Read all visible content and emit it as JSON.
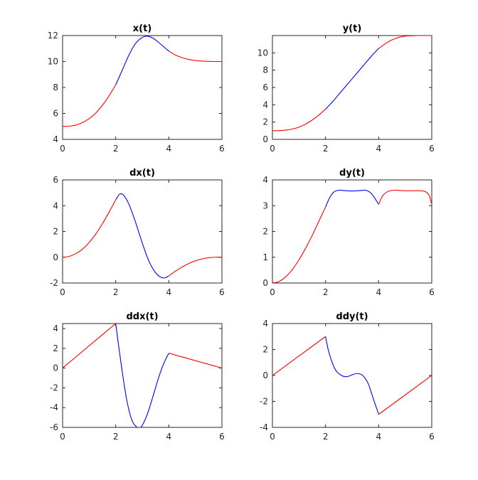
{
  "chart_data": [
    {
      "type": "line",
      "title": "x(t)",
      "xlabel": "",
      "ylabel": "",
      "xlim": [
        0,
        6
      ],
      "ylim": [
        4,
        12
      ],
      "xticks": [
        0,
        2,
        4,
        6
      ],
      "yticks": [
        4,
        6,
        8,
        10,
        12
      ],
      "grid": false,
      "series": [
        {
          "color": "#ff0000",
          "x": [
            0,
            0.25,
            0.5,
            0.75,
            1,
            1.25,
            1.5,
            1.75,
            2
          ],
          "y": [
            5,
            5.02,
            5.1,
            5.3,
            5.6,
            6.03,
            6.63,
            7.36,
            8.2
          ]
        },
        {
          "color": "#0000ff",
          "x": [
            2,
            2.25,
            2.5,
            2.75,
            3,
            3.2,
            3.4,
            3.6,
            3.8,
            4
          ],
          "y": [
            8.2,
            9.35,
            10.5,
            11.4,
            11.85,
            11.95,
            11.8,
            11.5,
            11.15,
            10.8
          ]
        },
        {
          "color": "#ff0000",
          "x": [
            4,
            4.25,
            4.5,
            4.75,
            5,
            5.25,
            5.5,
            5.75,
            6
          ],
          "y": [
            10.8,
            10.5,
            10.3,
            10.16,
            10.08,
            10.03,
            10.01,
            10,
            10
          ]
        }
      ]
    },
    {
      "type": "line",
      "title": "y(t)",
      "xlabel": "",
      "ylabel": "",
      "xlim": [
        0,
        6
      ],
      "ylim": [
        0,
        12
      ],
      "xticks": [
        0,
        2,
        4,
        6
      ],
      "yticks": [
        0,
        2,
        4,
        6,
        8,
        10
      ],
      "grid": false,
      "series": [
        {
          "color": "#ff0000",
          "x": [
            0,
            0.25,
            0.5,
            0.75,
            1,
            1.25,
            1.5,
            1.75,
            2
          ],
          "y": [
            1,
            1.01,
            1.06,
            1.19,
            1.42,
            1.77,
            2.24,
            2.82,
            3.5
          ]
        },
        {
          "color": "#0000ff",
          "x": [
            2,
            2.25,
            2.5,
            2.75,
            3,
            3.25,
            3.5,
            3.75,
            4
          ],
          "y": [
            3.5,
            4.3,
            5.2,
            6.1,
            7,
            7.9,
            8.8,
            9.7,
            10.5
          ]
        },
        {
          "color": "#ff0000",
          "x": [
            4,
            4.25,
            4.5,
            4.75,
            5,
            5.25,
            5.5,
            5.75,
            6
          ],
          "y": [
            10.5,
            11.05,
            11.5,
            11.78,
            11.93,
            11.98,
            12,
            12,
            12
          ]
        }
      ]
    },
    {
      "type": "line",
      "title": "dx(t)",
      "xlabel": "",
      "ylabel": "",
      "xlim": [
        0,
        6
      ],
      "ylim": [
        -2,
        6
      ],
      "xticks": [
        0,
        2,
        4,
        6
      ],
      "yticks": [
        -2,
        0,
        2,
        4,
        6
      ],
      "grid": false,
      "series": [
        {
          "color": "#ff0000",
          "x": [
            0,
            0.25,
            0.5,
            0.75,
            1,
            1.25,
            1.5,
            1.75,
            2
          ],
          "y": [
            0,
            0.07,
            0.28,
            0.63,
            1.15,
            1.8,
            2.6,
            3.5,
            4.45
          ]
        },
        {
          "color": "#0000ff",
          "x": [
            2,
            2.15,
            2.3,
            2.5,
            2.75,
            3,
            3.25,
            3.5,
            3.7,
            3.85,
            4
          ],
          "y": [
            4.45,
            4.9,
            4.8,
            4.1,
            2.7,
            1.1,
            -0.3,
            -1.2,
            -1.55,
            -1.6,
            -1.45
          ]
        },
        {
          "color": "#ff0000",
          "x": [
            4,
            4.25,
            4.5,
            4.75,
            5,
            5.25,
            5.5,
            5.75,
            6
          ],
          "y": [
            -1.45,
            -1.08,
            -0.76,
            -0.49,
            -0.28,
            -0.13,
            -0.04,
            0,
            0
          ]
        }
      ]
    },
    {
      "type": "line",
      "title": "dy(t)",
      "xlabel": "",
      "ylabel": "",
      "xlim": [
        0,
        6
      ],
      "ylim": [
        0,
        4
      ],
      "xticks": [
        0,
        2,
        4,
        6
      ],
      "yticks": [
        0,
        1,
        2,
        3,
        4
      ],
      "grid": false,
      "series": [
        {
          "color": "#ff0000",
          "x": [
            0,
            0.25,
            0.5,
            0.75,
            1,
            1.25,
            1.5,
            1.75,
            2
          ],
          "y": [
            0,
            0.06,
            0.24,
            0.52,
            0.9,
            1.35,
            1.85,
            2.4,
            2.95
          ]
        },
        {
          "color": "#0000ff",
          "x": [
            2,
            2.15,
            2.3,
            2.5,
            2.75,
            3,
            3.25,
            3.5,
            3.7,
            3.85,
            4
          ],
          "y": [
            2.95,
            3.3,
            3.52,
            3.6,
            3.58,
            3.57,
            3.58,
            3.6,
            3.5,
            3.3,
            3.05
          ]
        },
        {
          "color": "#ff0000",
          "x": [
            4,
            4.15,
            4.35,
            4.6,
            5,
            5.5,
            5.75,
            5.9,
            6
          ],
          "y": [
            3.05,
            3.38,
            3.55,
            3.6,
            3.58,
            3.58,
            3.55,
            3.4,
            3.05
          ]
        }
      ]
    },
    {
      "type": "line",
      "title": "ddx(t)",
      "xlabel": "",
      "ylabel": "",
      "xlim": [
        0,
        6
      ],
      "ylim": [
        -6,
        4.5
      ],
      "xticks": [
        0,
        2,
        4,
        6
      ],
      "yticks": [
        -6,
        -4,
        -2,
        0,
        2,
        4
      ],
      "grid": false,
      "series": [
        {
          "color": "#ff0000",
          "x": [
            0,
            2
          ],
          "y": [
            0,
            4.5
          ]
        },
        {
          "color": "#0000ff",
          "x": [
            2,
            2.2,
            2.4,
            2.6,
            2.8,
            2.9,
            3,
            3.2,
            3.4,
            3.6,
            3.8,
            4
          ],
          "y": [
            4.5,
            0.5,
            -3,
            -5.2,
            -6,
            -6.05,
            -5.8,
            -4.6,
            -2.9,
            -1.1,
            0.4,
            1.5
          ]
        },
        {
          "color": "#ff0000",
          "x": [
            4,
            6
          ],
          "y": [
            1.5,
            0
          ]
        }
      ]
    },
    {
      "type": "line",
      "title": "ddy(t)",
      "xlabel": "",
      "ylabel": "",
      "xlim": [
        0,
        6
      ],
      "ylim": [
        -4,
        4
      ],
      "xticks": [
        0,
        2,
        4,
        6
      ],
      "yticks": [
        -4,
        -2,
        0,
        2,
        4
      ],
      "grid": false,
      "series": [
        {
          "color": "#ff0000",
          "x": [
            0,
            2
          ],
          "y": [
            0,
            3
          ]
        },
        {
          "color": "#0000ff",
          "x": [
            2,
            2.1,
            2.25,
            2.4,
            2.6,
            2.8,
            3,
            3.2,
            3.4,
            3.6,
            3.8,
            4
          ],
          "y": [
            3,
            2,
            1,
            0.35,
            0,
            -0.1,
            0.05,
            0.15,
            0,
            -0.6,
            -1.8,
            -3
          ]
        },
        {
          "color": "#ff0000",
          "x": [
            4,
            6
          ],
          "y": [
            -3,
            0
          ]
        }
      ]
    }
  ]
}
